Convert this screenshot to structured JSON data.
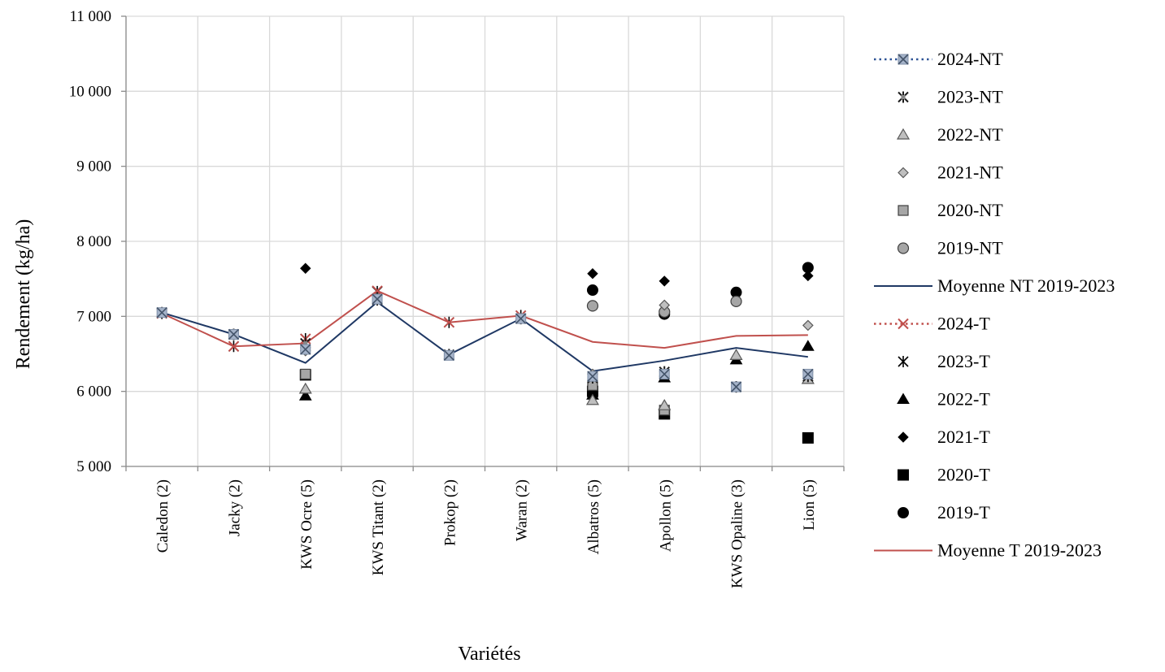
{
  "chart_data": {
    "type": "scatter",
    "title": "",
    "xlabel": "Variétés",
    "ylabel": "Rendement (kg/ha)",
    "ylim": [
      5000,
      11000
    ],
    "yticks": [
      5000,
      6000,
      7000,
      8000,
      9000,
      10000,
      11000
    ],
    "ytick_labels": [
      "5 000",
      "6 000",
      "7 000",
      "8 000",
      "9 000",
      "10 000",
      "11 000"
    ],
    "grid": "on",
    "legend_position": "right",
    "categories": [
      "Caledon (2)",
      "Jacky (2)",
      "KWS Ocre (5)",
      "KWS Titant (2)",
      "Prokop (2)",
      "Waran (2)",
      "Albatros (5)",
      "Apollon (5)",
      "KWS Opaline (3)",
      "Lion (5)"
    ],
    "series": [
      {
        "name": "2024-NT",
        "marker": "x-square",
        "color": "#8e9aaf",
        "values": [
          7050,
          6760,
          6560,
          7230,
          6480,
          6970,
          6200,
          6230,
          6060,
          6230
        ]
      },
      {
        "name": "2023-NT",
        "marker": "asterisk",
        "color": "#333333",
        "values": [
          7050,
          6760,
          6640,
          7220,
          6490,
          6970,
          6180,
          6260,
          6060,
          6200
        ]
      },
      {
        "name": "2022-NT",
        "marker": "triangle-open",
        "color": "#a6a6a6",
        "values": [
          null,
          null,
          6030,
          null,
          null,
          null,
          5880,
          5810,
          6480,
          6160
        ]
      },
      {
        "name": "2021-NT",
        "marker": "diamond-open",
        "color": "#a6a6a6",
        "values": [
          null,
          null,
          6540,
          null,
          null,
          null,
          6230,
          7150,
          null,
          6880
        ]
      },
      {
        "name": "2020-NT",
        "marker": "square-gray",
        "color": "#a6a6a6",
        "values": [
          null,
          null,
          6230,
          null,
          null,
          null,
          6080,
          5750,
          null,
          null
        ]
      },
      {
        "name": "2019-NT",
        "marker": "circle-gray",
        "color": "#a6a6a6",
        "values": [
          null,
          null,
          null,
          null,
          null,
          null,
          7140,
          7060,
          7200,
          null
        ]
      },
      {
        "name": "Moyenne NT 2019-2023",
        "marker": "line",
        "color": "#1f3864",
        "values": [
          7050,
          6760,
          6380,
          7190,
          6490,
          6970,
          6270,
          6410,
          6580,
          6460
        ]
      },
      {
        "name": "2024-T",
        "marker": "x",
        "color": "#c0504d",
        "values": [
          7040,
          6600,
          6700,
          7340,
          6920,
          7010,
          null,
          null,
          null,
          null
        ]
      },
      {
        "name": "2023-T",
        "marker": "star",
        "color": "#000000",
        "values": [
          7040,
          6600,
          6700,
          7330,
          6920,
          7010,
          6030,
          6200,
          6060,
          6200
        ]
      },
      {
        "name": "2022-T",
        "marker": "triangle",
        "color": "#000000",
        "values": [
          null,
          null,
          5940,
          null,
          null,
          null,
          5950,
          6180,
          6420,
          6600
        ]
      },
      {
        "name": "2021-T",
        "marker": "diamond",
        "color": "#000000",
        "values": [
          null,
          null,
          7640,
          null,
          null,
          null,
          7570,
          7470,
          null,
          7540
        ]
      },
      {
        "name": "2020-T",
        "marker": "square",
        "color": "#000000",
        "values": [
          null,
          null,
          6220,
          null,
          null,
          null,
          6000,
          5700,
          null,
          5380
        ]
      },
      {
        "name": "2019-T",
        "marker": "circle",
        "color": "#000000",
        "values": [
          null,
          null,
          null,
          null,
          null,
          null,
          7350,
          7030,
          7320,
          7650
        ]
      },
      {
        "name": "Moyenne T 2019-2023",
        "marker": "line",
        "color": "#c0504d",
        "values": [
          7040,
          6600,
          6640,
          7340,
          6920,
          7010,
          6660,
          6580,
          6740,
          6750
        ]
      }
    ]
  }
}
